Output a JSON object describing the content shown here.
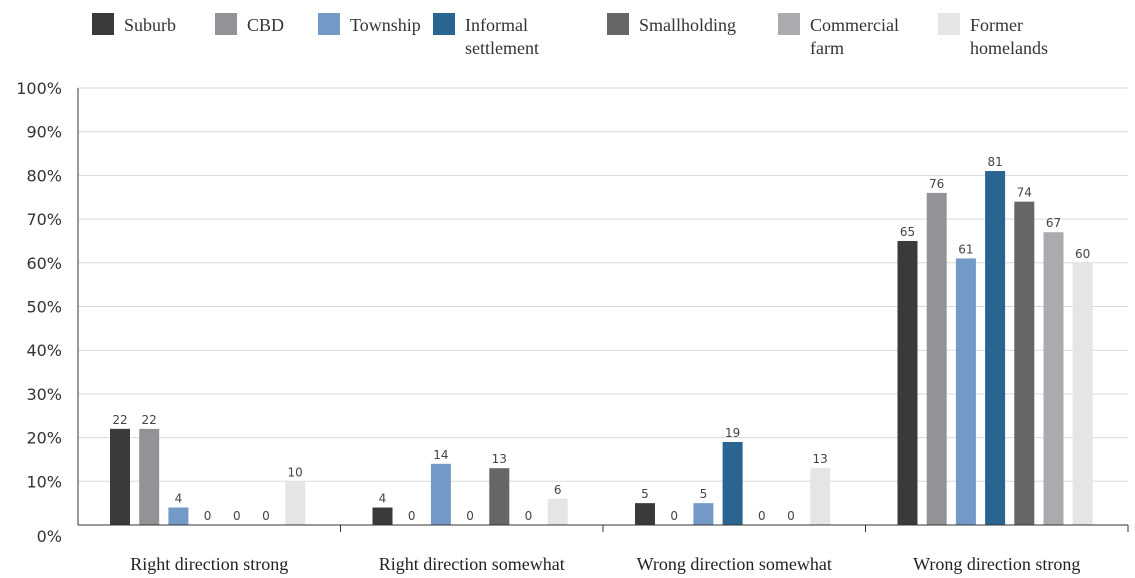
{
  "chart_data": {
    "type": "bar",
    "categories": [
      "Right direction strong",
      "Right direction somewhat",
      "Wrong direction somewhat",
      "Wrong direction strong"
    ],
    "series": [
      {
        "name": "Suburb",
        "legend_lines": [
          "Suburb"
        ],
        "color": "#3a3a3a",
        "values": [
          22,
          4,
          5,
          65
        ]
      },
      {
        "name": "CBD",
        "legend_lines": [
          "CBD"
        ],
        "color": "#939397",
        "values": [
          22,
          0,
          0,
          76
        ]
      },
      {
        "name": "Township",
        "legend_lines": [
          "Township"
        ],
        "color": "#7399c6",
        "values": [
          4,
          14,
          5,
          61
        ]
      },
      {
        "name": "Informal settlement",
        "legend_lines": [
          "Informal",
          "settlement"
        ],
        "color": "#2a6490",
        "values": [
          0,
          0,
          19,
          81
        ]
      },
      {
        "name": "Smallholding",
        "legend_lines": [
          "Smallholding"
        ],
        "color": "#666666",
        "values": [
          0,
          13,
          0,
          74
        ]
      },
      {
        "name": "Commercial farm",
        "legend_lines": [
          "Commercial",
          "farm"
        ],
        "color": "#ababaf",
        "values": [
          0,
          0,
          0,
          67
        ]
      },
      {
        "name": "Former homelands",
        "legend_lines": [
          "Former",
          "homelands"
        ],
        "color": "#e5e5e5",
        "values": [
          10,
          6,
          13,
          60
        ]
      }
    ],
    "yticks": [
      "0%",
      "10%",
      "20%",
      "30%",
      "40%",
      "50%",
      "60%",
      "70%",
      "80%",
      "90%",
      "100%"
    ],
    "ylim": [
      0,
      100
    ],
    "title": "",
    "xlabel": "",
    "ylabel": "",
    "grid": true,
    "legend_position": "top"
  }
}
